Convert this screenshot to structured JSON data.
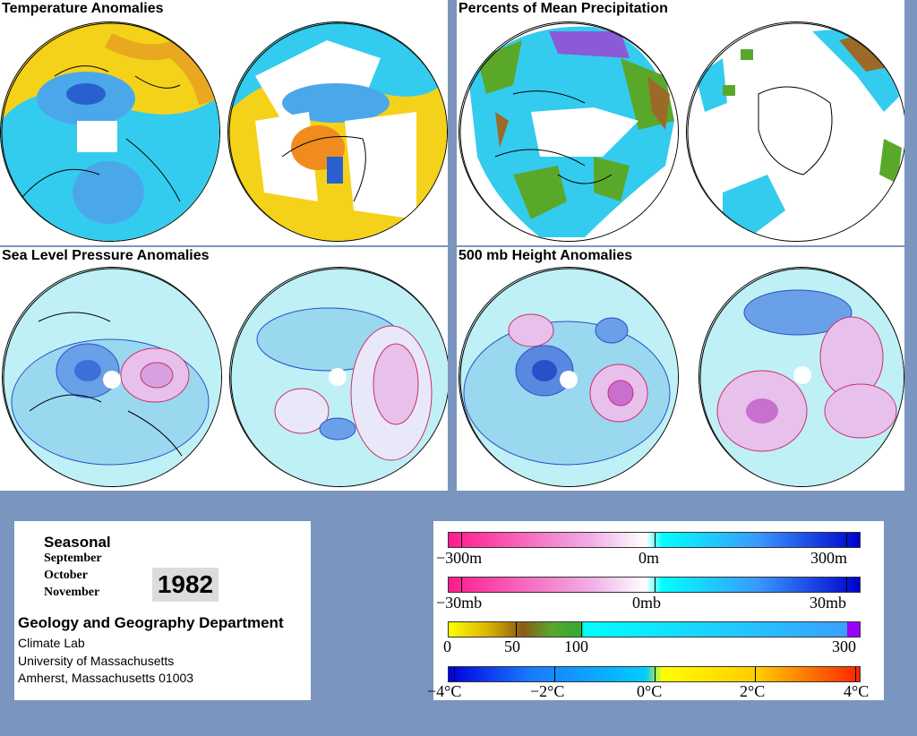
{
  "panels": {
    "temperature": {
      "title": "Temperature Anomalies"
    },
    "precipitation": {
      "title": "Percents of Mean Precipitation"
    },
    "slp": {
      "title": "Sea Level Pressure Anomalies"
    },
    "height500": {
      "title": "500 mb Height Anomalies"
    }
  },
  "info": {
    "period_type": "Seasonal",
    "months": [
      "September",
      "October",
      "November"
    ],
    "year": "1982",
    "department": "Geology and Geography Department",
    "lab": "Climate Lab",
    "university": "University of Massachusetts",
    "address": "Amherst, Massachusetts 01003"
  },
  "legend": {
    "height_scale": {
      "labels": [
        "−300m",
        "0m",
        "300m"
      ],
      "colors": [
        "#ff1a8c",
        "#ffffff",
        "#00ffff",
        "#0000cc"
      ]
    },
    "pressure_scale": {
      "labels": [
        "−30mb",
        "0mb",
        "30mb"
      ],
      "colors": [
        "#ff1a8c",
        "#ffffff",
        "#00ffff",
        "#0000cc"
      ]
    },
    "precip_scale": {
      "labels": [
        "0",
        "50",
        "100",
        "300"
      ],
      "colors": [
        "#ffff00",
        "#8b5a14",
        "#33aa33",
        "#00ffff",
        "#3366ff",
        "#9900ff"
      ]
    },
    "temp_scale": {
      "labels": [
        "−4°C",
        "−2°C",
        "0°C",
        "2°C",
        "4°C"
      ],
      "colors": [
        "#0000dd",
        "#00ccff",
        "#ffff00",
        "#ff8800",
        "#ff2200"
      ]
    }
  }
}
